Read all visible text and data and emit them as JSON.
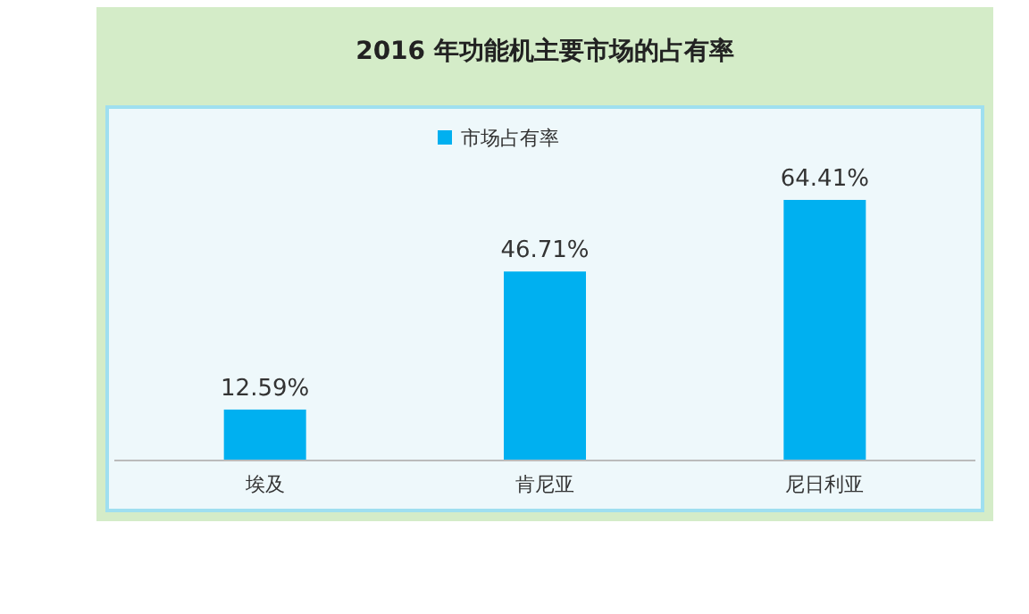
{
  "chart_data": {
    "type": "bar",
    "title": "2016 年功能机主要市场的占有率",
    "categories": [
      "埃及",
      "肯尼亚",
      "尼日利亚"
    ],
    "series": [
      {
        "name": "市场占有率",
        "color": "#00b0f0",
        "values": [
          12.59,
          46.71,
          64.41
        ],
        "value_labels": [
          "12.59%",
          "46.71%",
          "64.41%"
        ]
      }
    ],
    "legend": "top"
  }
}
